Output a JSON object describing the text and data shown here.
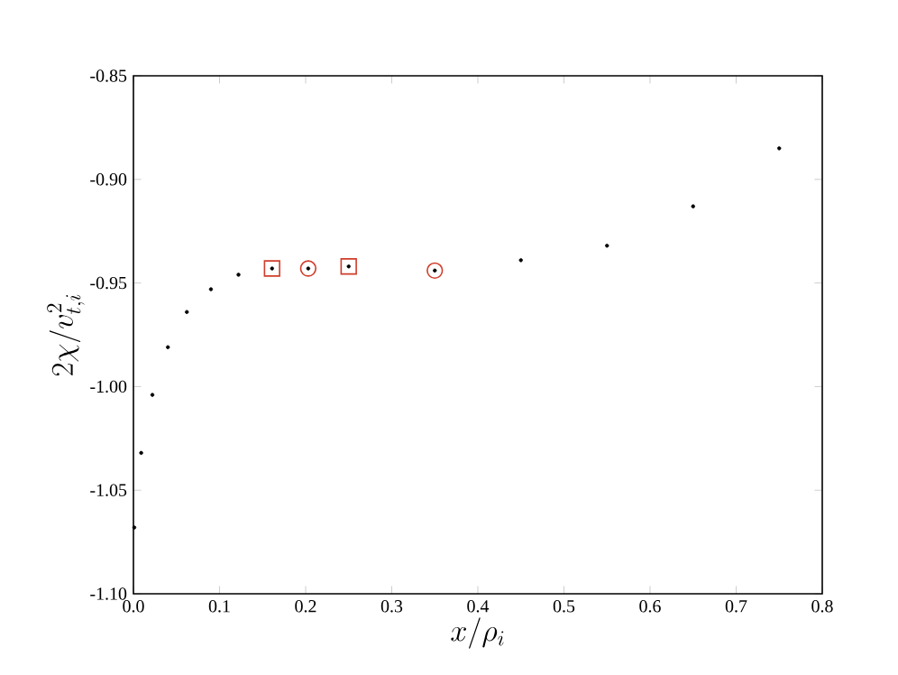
{
  "chart_data": {
    "type": "scatter",
    "xlabel": "x/\\rho_i",
    "ylabel": "2\\chi/v_{t,i}^2",
    "xlim": [
      0,
      0.8
    ],
    "ylim": [
      -1.1,
      -0.85
    ],
    "xticks": [
      {
        "value": 0,
        "label": "0.0"
      },
      0.1,
      0.2,
      0.3,
      0.4,
      0.5,
      0.6,
      0.7,
      0.8
    ],
    "yticks": [
      {
        "value": -1.1,
        "label": "-1.10"
      },
      -1.05,
      {
        "value": -1.0,
        "label": "-1.00"
      },
      -0.95,
      {
        "value": -0.9,
        "label": "-0.90"
      },
      -0.85
    ],
    "series": [
      {
        "color": "#000000",
        "marker": "circle",
        "x": [
          0.001,
          0.009,
          0.022,
          0.04,
          0.062,
          0.09,
          0.122,
          0.161,
          0.203,
          0.25,
          0.35,
          0.45,
          0.55,
          0.65,
          0.75
        ],
        "values": [
          -1.068,
          -1.032,
          -1.004,
          -0.981,
          -0.964,
          -0.953,
          -0.946,
          -0.943,
          -0.943,
          -0.942,
          -0.944,
          -0.939,
          -0.932,
          -0.913,
          -0.885
        ]
      },
      {
        "color": "#d03c2a",
        "marker": "square",
        "x": [
          0.161,
          0.25
        ],
        "values": [
          -0.943,
          -0.942
        ]
      },
      {
        "color": "#d03c2a",
        "marker": "circle",
        "x": [
          0.203,
          0.35
        ],
        "values": [
          -0.943,
          -0.944
        ]
      }
    ]
  }
}
